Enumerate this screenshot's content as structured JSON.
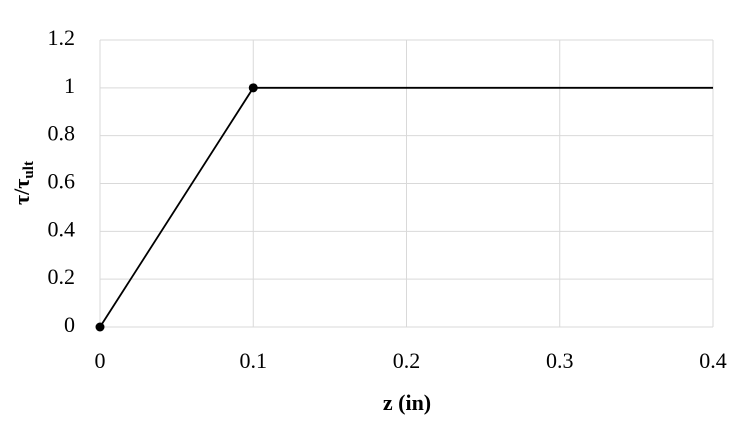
{
  "chart_data": {
    "type": "line",
    "x_label": "z (in)",
    "y_label": {
      "main": "τ/τ",
      "subscript": "ult"
    },
    "x": [
      0,
      0.1,
      0.4
    ],
    "series": [
      {
        "color": "#000000",
        "values": [
          0,
          1,
          1
        ],
        "markers": [
          true,
          true,
          false
        ]
      }
    ],
    "xlim": [
      0,
      0.4
    ],
    "xticks": [
      0,
      0.1,
      0.2,
      0.3,
      0.4
    ],
    "ylim": [
      0,
      1.2
    ],
    "yticks": [
      0,
      0.2,
      0.4,
      0.6,
      0.8,
      1,
      1.2
    ],
    "grid": true
  }
}
